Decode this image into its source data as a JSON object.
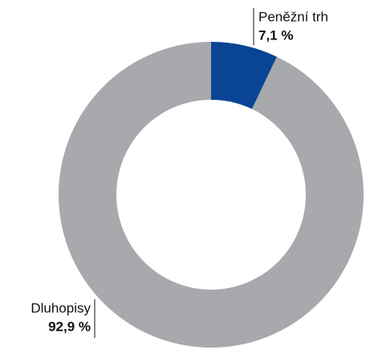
{
  "chart_data": {
    "type": "pie",
    "donut": true,
    "categories": [
      "Peněžní trh",
      "Dluhopisy"
    ],
    "values": [
      7.1,
      92.9
    ],
    "value_labels": [
      "7,1 %",
      "92,9 %"
    ],
    "colors": [
      "#0a4494",
      "#a7a9ac"
    ]
  }
}
